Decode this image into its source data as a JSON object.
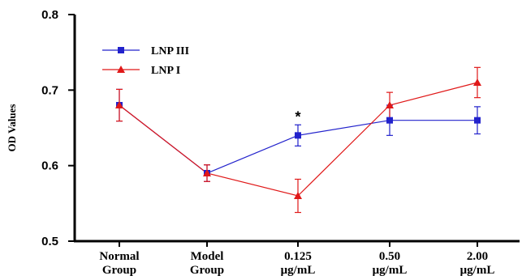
{
  "chart_data": {
    "type": "line",
    "ylabel": "OD Values",
    "ylim": [
      0.5,
      0.8
    ],
    "yticks": [
      "0.5",
      "0.6",
      "0.7",
      "0.8"
    ],
    "categories": [
      [
        "Normal",
        "Group"
      ],
      [
        "Model",
        "Group"
      ],
      [
        "0.125",
        "μg/mL"
      ],
      [
        "0.50",
        "μg/mL"
      ],
      [
        "2.00",
        "μg/mL"
      ]
    ],
    "legend_position": "top-left",
    "grid": false,
    "series": [
      {
        "name": "LNP III",
        "color": "#2222cc",
        "marker": "square",
        "values": [
          0.68,
          0.59,
          0.64,
          0.66,
          0.66
        ],
        "errors": [
          0.021,
          0.011,
          0.014,
          0.02,
          0.018
        ]
      },
      {
        "name": "LNP I",
        "color": "#e01818",
        "marker": "triangle",
        "values": [
          0.68,
          0.59,
          0.56,
          0.68,
          0.71
        ],
        "errors": [
          0.021,
          0.011,
          0.022,
          0.017,
          0.02
        ]
      }
    ],
    "annotations": [
      {
        "text": "*",
        "category_index": 2,
        "value": 0.66
      }
    ]
  }
}
